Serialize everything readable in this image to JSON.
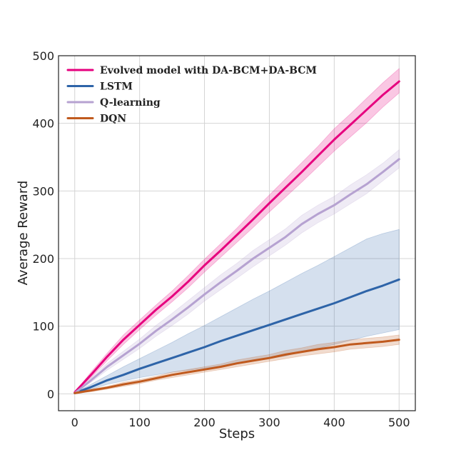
{
  "chart_data": {
    "type": "line",
    "title": "",
    "xlabel": "Steps",
    "ylabel": "Average Reward",
    "xlim": [
      -25,
      525
    ],
    "ylim": [
      -25,
      500
    ],
    "xticks": [
      0,
      100,
      200,
      300,
      400,
      500
    ],
    "yticks": [
      0,
      100,
      200,
      300,
      400,
      500
    ],
    "grid": true,
    "legend_position": "top-left",
    "x": [
      0,
      25,
      50,
      75,
      100,
      125,
      150,
      175,
      200,
      225,
      250,
      275,
      300,
      325,
      350,
      375,
      400,
      425,
      450,
      475,
      500
    ],
    "series": [
      {
        "name": "Evolved model with DA-BCM+DA-BCM",
        "color": "#e6007e",
        "values": [
          2,
          28,
          55,
          80,
          102,
          124,
          144,
          166,
          190,
          212,
          235,
          258,
          282,
          305,
          328,
          352,
          376,
          398,
          420,
          442,
          462
        ],
        "lower": [
          2,
          24,
          49,
          73,
          95,
          116,
          136,
          157,
          180,
          202,
          224,
          246,
          269,
          291,
          313,
          336,
          359,
          380,
          401,
          424,
          445
        ],
        "upper": [
          2,
          32,
          60,
          87,
          109,
          131,
          152,
          175,
          199,
          222,
          245,
          270,
          294,
          318,
          342,
          366,
          392,
          414,
          437,
          460,
          481
        ]
      },
      {
        "name": "LSTM",
        "color": "#2e64a8",
        "values": [
          1,
          10,
          20,
          28,
          37,
          45,
          53,
          61,
          69,
          78,
          86,
          94,
          102,
          110,
          118,
          126,
          134,
          143,
          152,
          160,
          169
        ],
        "lower": [
          1,
          7,
          14,
          19,
          24,
          28,
          32,
          35,
          38,
          41,
          44,
          48,
          52,
          56,
          62,
          67,
          73,
          79,
          85,
          90,
          95
        ],
        "upper": [
          1,
          14,
          27,
          40,
          52,
          64,
          76,
          89,
          101,
          114,
          127,
          140,
          152,
          165,
          178,
          190,
          203,
          216,
          229,
          237,
          243
        ]
      },
      {
        "name": "Q-learning",
        "color": "#b6a2d1",
        "values": [
          1,
          20,
          40,
          57,
          74,
          93,
          110,
          128,
          147,
          165,
          182,
          200,
          216,
          232,
          251,
          266,
          279,
          295,
          310,
          328,
          347
        ],
        "lower": [
          1,
          17,
          35,
          51,
          67,
          85,
          101,
          118,
          137,
          154,
          171,
          188,
          204,
          220,
          238,
          253,
          266,
          281,
          296,
          315,
          334
        ],
        "upper": [
          1,
          23,
          45,
          63,
          81,
          101,
          119,
          138,
          157,
          176,
          193,
          212,
          228,
          244,
          264,
          279,
          292,
          309,
          324,
          341,
          361
        ]
      },
      {
        "name": "DQN",
        "color": "#c05a1e",
        "values": [
          1,
          5,
          9,
          14,
          18,
          23,
          28,
          32,
          36,
          40,
          45,
          49,
          53,
          58,
          62,
          66,
          69,
          73,
          75,
          77,
          80
        ],
        "lower": [
          1,
          3,
          7,
          11,
          15,
          20,
          24,
          28,
          32,
          36,
          40,
          44,
          48,
          52,
          56,
          59,
          62,
          66,
          68,
          70,
          73
        ],
        "upper": [
          1,
          7,
          11,
          17,
          21,
          26,
          32,
          36,
          40,
          44,
          50,
          54,
          58,
          64,
          68,
          73,
          76,
          80,
          82,
          84,
          87
        ]
      }
    ]
  }
}
